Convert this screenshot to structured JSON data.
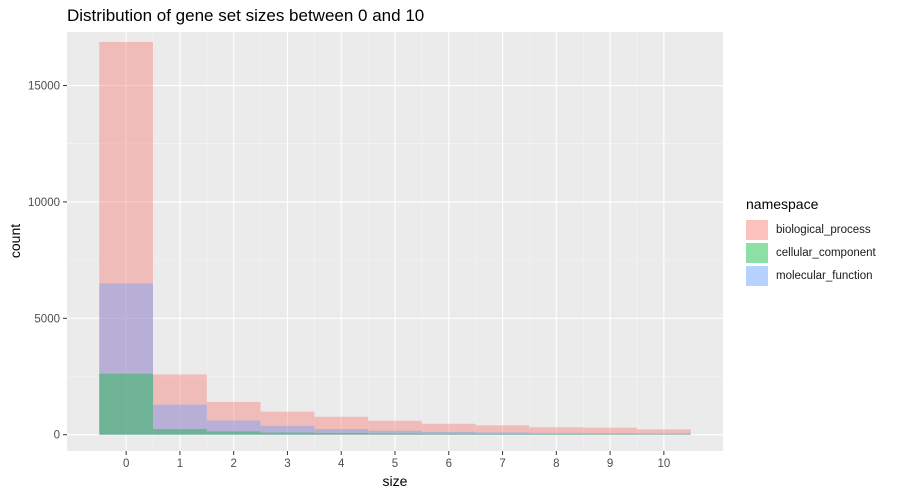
{
  "chart_data": {
    "type": "bar",
    "title": "Distribution of gene set sizes between 0 and 10",
    "xlabel": "size",
    "ylabel": "count",
    "categories": [
      0,
      1,
      2,
      3,
      4,
      5,
      6,
      7,
      8,
      9,
      10
    ],
    "ylim": [
      -700,
      17300
    ],
    "yticks": [
      0,
      5000,
      10000,
      15000
    ],
    "grid": true,
    "legend_position": "right",
    "legend_title": "namespace",
    "series": [
      {
        "name": "biological_process",
        "color": "#f8766d",
        "values": [
          16870,
          2590,
          1410,
          990,
          770,
          600,
          470,
          400,
          320,
          300,
          230
        ]
      },
      {
        "name": "molecular_function",
        "color": "#619cff",
        "values": [
          6500,
          1290,
          610,
          380,
          240,
          170,
          120,
          100,
          80,
          70,
          60
        ]
      },
      {
        "name": "cellular_component",
        "color": "#00ba38",
        "values": [
          2620,
          240,
          140,
          90,
          70,
          50,
          40,
          30,
          25,
          20,
          15
        ]
      }
    ],
    "legend_order": [
      "biological_process",
      "cellular_component",
      "molecular_function"
    ]
  }
}
